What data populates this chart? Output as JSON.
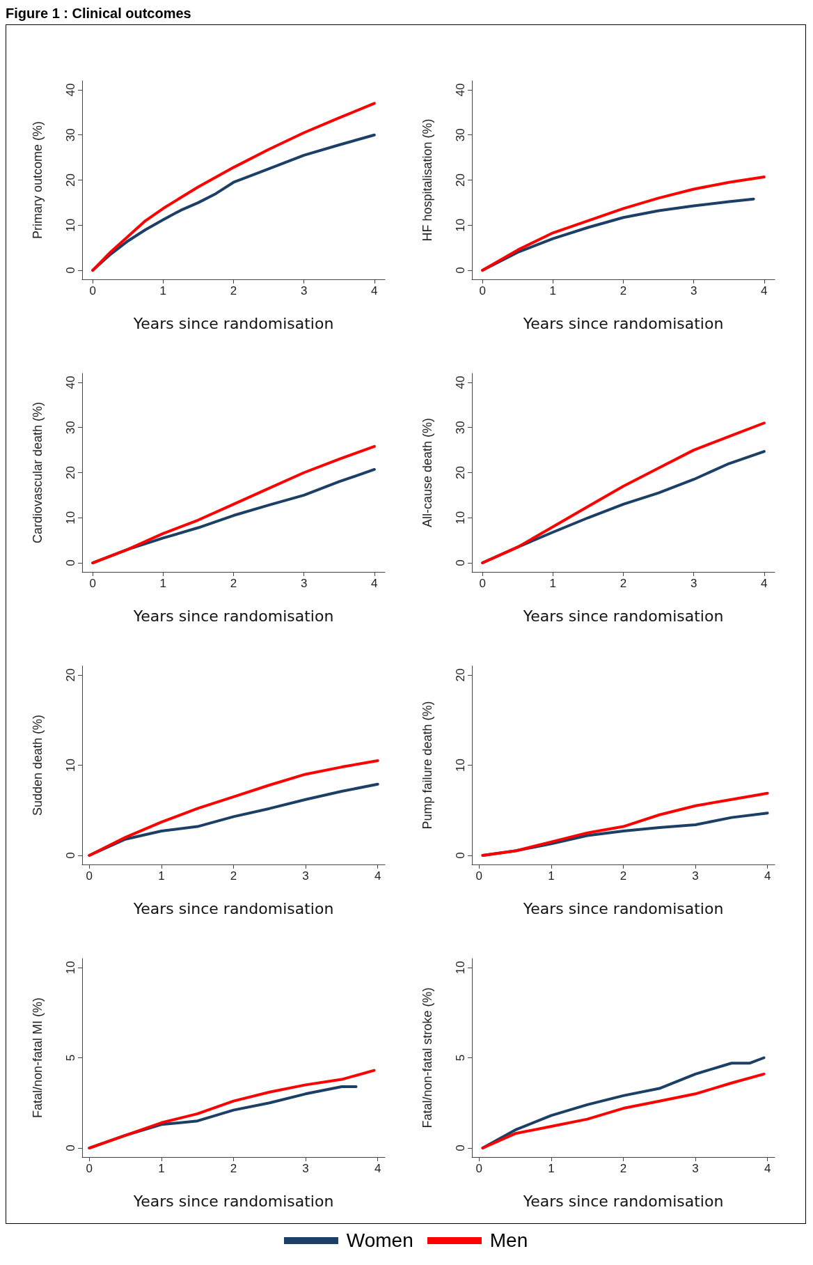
{
  "chart_data": [
    {
      "type": "line",
      "title": "Figure 1 : Clinical outcomes",
      "ylabel": "Primary outcome (%)",
      "xlabel": "Years since randomisation",
      "xlim": [
        -0.15,
        4.15
      ],
      "xticks": [
        0,
        1,
        2,
        3,
        4
      ],
      "ylim": [
        -2,
        42
      ],
      "yticks": [
        0,
        10,
        20,
        30,
        40
      ],
      "grid": false,
      "legend": "bottom",
      "series": [
        {
          "name": "Women",
          "color": "#1c3f66",
          "x": [
            0,
            0.25,
            0.5,
            0.75,
            1,
            1.25,
            1.5,
            1.75,
            2,
            2.5,
            3,
            3.5,
            4
          ],
          "values": [
            0,
            3.5,
            6.5,
            9,
            11.2,
            13.3,
            15,
            17,
            19.5,
            22.5,
            25.5,
            27.8,
            30
          ]
        },
        {
          "name": "Men",
          "color": "#ff0000",
          "x": [
            0,
            0.25,
            0.5,
            0.75,
            1,
            1.5,
            2,
            2.5,
            3,
            3.5,
            4
          ],
          "values": [
            0,
            4,
            7.5,
            11,
            13.7,
            18.5,
            22.8,
            26.8,
            30.5,
            33.8,
            37
          ]
        }
      ]
    },
    {
      "type": "line",
      "ylabel": "HF hospitalisation (%)",
      "xlabel": "Years since randomisation",
      "xlim": [
        -0.15,
        4.15
      ],
      "xticks": [
        0,
        1,
        2,
        3,
        4
      ],
      "ylim": [
        -2,
        42
      ],
      "yticks": [
        0,
        10,
        20,
        30,
        40
      ],
      "grid": false,
      "series": [
        {
          "color": "#1c3f66",
          "x": [
            0,
            0.5,
            1,
            1.5,
            2,
            2.5,
            3,
            3.5,
            3.85
          ],
          "values": [
            0,
            4,
            7,
            9.5,
            11.7,
            13.2,
            14.3,
            15.2,
            15.8
          ]
        },
        {
          "color": "#ff0000",
          "x": [
            0,
            0.5,
            1,
            1.5,
            2,
            2.5,
            3,
            3.5,
            4
          ],
          "values": [
            0,
            4.5,
            8.3,
            11,
            13.7,
            16,
            18,
            19.5,
            20.7
          ]
        }
      ]
    },
    {
      "type": "line",
      "ylabel": "Cardiovascular death (%)",
      "xlabel": "Years since randomisation",
      "xlim": [
        -0.15,
        4.15
      ],
      "xticks": [
        0,
        1,
        2,
        3,
        4
      ],
      "ylim": [
        -2,
        42
      ],
      "yticks": [
        0,
        10,
        20,
        30,
        40
      ],
      "grid": false,
      "series": [
        {
          "color": "#1c3f66",
          "x": [
            0,
            0.5,
            1,
            1.5,
            2,
            2.5,
            3,
            3.5,
            4
          ],
          "values": [
            0,
            3,
            5.5,
            7.8,
            10.5,
            12.8,
            15,
            18,
            20.7
          ]
        },
        {
          "color": "#ff0000",
          "x": [
            0,
            0.5,
            1,
            1.5,
            2,
            2.5,
            3,
            3.5,
            4
          ],
          "values": [
            0,
            3,
            6.5,
            9.5,
            13,
            16.5,
            20,
            23,
            25.8
          ]
        }
      ]
    },
    {
      "type": "line",
      "ylabel": "All-cause death (%)",
      "xlabel": "Years since randomisation",
      "xlim": [
        -0.15,
        4.15
      ],
      "xticks": [
        0,
        1,
        2,
        3,
        4
      ],
      "ylim": [
        -2,
        42
      ],
      "yticks": [
        0,
        10,
        20,
        30,
        40
      ],
      "grid": false,
      "series": [
        {
          "color": "#1c3f66",
          "x": [
            0,
            0.5,
            1,
            1.5,
            2,
            2.5,
            3,
            3.5,
            4
          ],
          "values": [
            0,
            3.5,
            6.8,
            10,
            13,
            15.5,
            18.5,
            22,
            24.7
          ]
        },
        {
          "color": "#ff0000",
          "x": [
            0,
            0.5,
            1,
            1.5,
            2,
            2.5,
            3,
            3.5,
            4
          ],
          "values": [
            0,
            3.5,
            8,
            12.5,
            17,
            21,
            25,
            28,
            31
          ]
        }
      ]
    },
    {
      "type": "line",
      "ylabel": "Sudden death (%)",
      "xlabel": "Years since randomisation",
      "xlim": [
        -0.1,
        4.1
      ],
      "xticks": [
        0,
        1,
        2,
        3,
        4
      ],
      "ylim": [
        -1,
        21
      ],
      "yticks": [
        0,
        10,
        20
      ],
      "grid": false,
      "series": [
        {
          "color": "#1c3f66",
          "x": [
            0,
            0.5,
            1,
            1.5,
            2,
            2.5,
            3,
            3.5,
            4
          ],
          "values": [
            0,
            1.8,
            2.7,
            3.2,
            4.3,
            5.2,
            6.2,
            7.1,
            7.9
          ]
        },
        {
          "color": "#ff0000",
          "x": [
            0,
            0.5,
            1,
            1.5,
            2,
            2.5,
            3,
            3.5,
            4
          ],
          "values": [
            0,
            2,
            3.7,
            5.2,
            6.5,
            7.8,
            9,
            9.8,
            10.5
          ]
        }
      ]
    },
    {
      "type": "line",
      "ylabel": "Pump failure death (%)",
      "xlabel": "Years since randomisation",
      "xlim": [
        -0.1,
        4.1
      ],
      "xticks": [
        0,
        1,
        2,
        3,
        4
      ],
      "ylim": [
        -1,
        21
      ],
      "yticks": [
        0,
        10,
        20
      ],
      "grid": false,
      "series": [
        {
          "color": "#1c3f66",
          "x": [
            0.05,
            0.5,
            1,
            1.5,
            2,
            2.5,
            3,
            3.5,
            4
          ],
          "values": [
            0,
            0.5,
            1.3,
            2.2,
            2.7,
            3.1,
            3.4,
            4.2,
            4.7
          ]
        },
        {
          "color": "#ff0000",
          "x": [
            0.05,
            0.5,
            1,
            1.5,
            2,
            2.5,
            3,
            3.5,
            4
          ],
          "values": [
            0,
            0.5,
            1.5,
            2.5,
            3.2,
            4.5,
            5.5,
            6.2,
            6.9
          ]
        }
      ]
    },
    {
      "type": "line",
      "ylabel": "Fatal/non-fatal MI (%)",
      "xlabel": "Years since randomisation",
      "xlim": [
        -0.1,
        4.1
      ],
      "xticks": [
        0,
        1,
        2,
        3,
        4
      ],
      "ylim": [
        -0.5,
        10.5
      ],
      "yticks": [
        0,
        5,
        10
      ],
      "grid": false,
      "series": [
        {
          "color": "#1c3f66",
          "x": [
            0,
            0.5,
            1,
            1.5,
            2,
            2.5,
            3,
            3.5,
            3.7
          ],
          "values": [
            0,
            0.7,
            1.3,
            1.5,
            2.1,
            2.5,
            3,
            3.4,
            3.4
          ]
        },
        {
          "color": "#ff0000",
          "x": [
            0,
            0.5,
            1,
            1.5,
            2,
            2.5,
            3,
            3.5,
            3.95
          ],
          "values": [
            0,
            0.7,
            1.4,
            1.9,
            2.6,
            3.1,
            3.5,
            3.8,
            4.3
          ]
        }
      ]
    },
    {
      "type": "line",
      "ylabel": "Fatal/non-fatal stroke (%)",
      "xlabel": "Years since randomisation",
      "xlim": [
        -0.1,
        4.1
      ],
      "xticks": [
        0,
        1,
        2,
        3,
        4
      ],
      "ylim": [
        -0.5,
        10.5
      ],
      "yticks": [
        0,
        5,
        10
      ],
      "grid": false,
      "series": [
        {
          "color": "#1c3f66",
          "x": [
            0.05,
            0.5,
            1,
            1.5,
            2,
            2.5,
            3,
            3.5,
            3.75,
            3.95
          ],
          "values": [
            0,
            1,
            1.8,
            2.4,
            2.9,
            3.3,
            4.1,
            4.7,
            4.7,
            5
          ]
        },
        {
          "color": "#ff0000",
          "x": [
            0.05,
            0.5,
            1,
            1.5,
            2,
            2.5,
            3,
            3.5,
            3.95
          ],
          "values": [
            0,
            0.8,
            1.2,
            1.6,
            2.2,
            2.6,
            3,
            3.6,
            4.1
          ]
        }
      ]
    }
  ]
}
